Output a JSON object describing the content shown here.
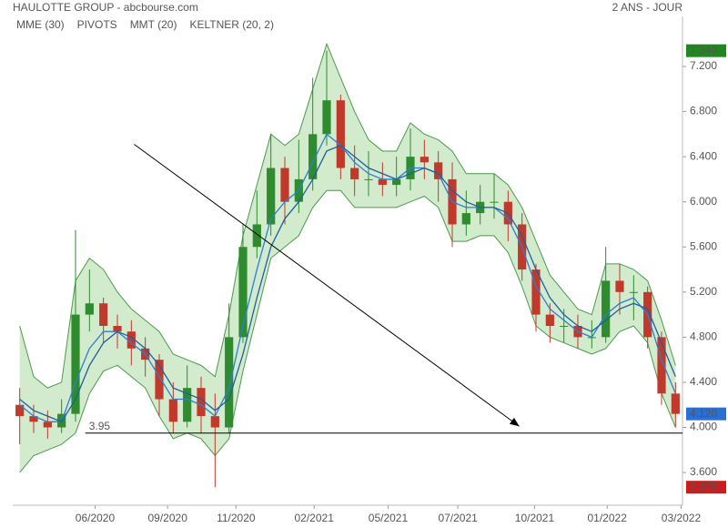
{
  "chart_data": {
    "type": "candlestick",
    "title": "HAULOTTE GROUP - abcbourse.com",
    "period": "2 ANS - JOUR",
    "up_color": "#2e8b2e",
    "down_color": "#c0392b",
    "candles": {
      "open": [
        4.2,
        4.1,
        4.05,
        4.0,
        4.12,
        5.0,
        5.1,
        4.9,
        4.85,
        4.7,
        4.6,
        4.25,
        4.05,
        4.35,
        4.1,
        4.0,
        4.8,
        5.6,
        5.8,
        6.3,
        6.0,
        6.2,
        6.6,
        6.9,
        6.3,
        6.2,
        6.2,
        6.15,
        6.2,
        6.4,
        6.35,
        6.2,
        5.8,
        5.9,
        6.0,
        6.0,
        5.8,
        5.4,
        5.0,
        4.9,
        4.9,
        4.8,
        4.8,
        5.3,
        5.2,
        5.2,
        4.8,
        4.3
      ],
      "high": [
        4.35,
        4.2,
        4.15,
        4.25,
        5.75,
        5.4,
        5.15,
        5.0,
        4.95,
        4.8,
        4.65,
        4.4,
        4.55,
        4.45,
        4.3,
        5.1,
        5.8,
        6.1,
        6.6,
        6.4,
        6.55,
        7.1,
        7.34,
        6.95,
        6.5,
        6.45,
        6.35,
        6.4,
        6.65,
        6.55,
        6.45,
        6.35,
        6.1,
        6.15,
        6.25,
        6.1,
        5.9,
        5.45,
        5.1,
        5.05,
        5.0,
        4.95,
        5.6,
        5.45,
        5.35,
        5.25,
        4.85,
        4.4
      ],
      "low": [
        3.85,
        3.95,
        3.9,
        3.95,
        4.05,
        4.85,
        4.75,
        4.7,
        4.55,
        4.45,
        4.1,
        3.95,
        4.0,
        3.95,
        3.47,
        3.95,
        4.75,
        5.5,
        5.7,
        5.8,
        5.9,
        6.1,
        6.5,
        6.2,
        6.05,
        6.05,
        6.05,
        6.05,
        6.1,
        6.2,
        6.0,
        5.6,
        5.7,
        5.8,
        5.85,
        5.65,
        5.3,
        4.85,
        4.75,
        4.75,
        4.7,
        4.7,
        4.75,
        5.0,
        4.95,
        4.7,
        4.2,
        4.0
      ],
      "close": [
        4.1,
        4.05,
        4.0,
        4.12,
        5.0,
        5.1,
        4.9,
        4.85,
        4.7,
        4.6,
        4.25,
        4.05,
        4.35,
        4.1,
        4.0,
        4.8,
        5.6,
        5.8,
        6.3,
        6.0,
        6.2,
        6.6,
        6.9,
        6.3,
        6.2,
        6.2,
        6.15,
        6.2,
        6.4,
        6.35,
        6.2,
        5.8,
        5.9,
        6.0,
        6.0,
        5.8,
        5.4,
        5.0,
        4.9,
        4.9,
        4.8,
        4.8,
        5.3,
        5.2,
        5.2,
        4.8,
        4.3,
        4.12
      ]
    },
    "series": [
      {
        "name": "MME (30)",
        "color": "#2a7fd4",
        "values": [
          4.2,
          4.1,
          4.05,
          4.05,
          4.4,
          4.7,
          4.85,
          4.85,
          4.75,
          4.65,
          4.45,
          4.25,
          4.25,
          4.2,
          4.1,
          4.35,
          4.9,
          5.4,
          5.85,
          6.0,
          6.1,
          6.35,
          6.6,
          6.5,
          6.35,
          6.25,
          6.2,
          6.2,
          6.3,
          6.3,
          6.25,
          6.0,
          5.95,
          5.95,
          5.95,
          5.85,
          5.6,
          5.25,
          5.05,
          4.95,
          4.85,
          4.8,
          5.0,
          5.1,
          5.15,
          5.0,
          4.6,
          4.3
        ]
      },
      {
        "name": "PIVOTS",
        "color": "#444444"
      },
      {
        "name": "MMT (20)",
        "color": "#1f5f9f",
        "values": [
          4.25,
          4.15,
          4.1,
          4.05,
          4.25,
          4.55,
          4.75,
          4.85,
          4.8,
          4.7,
          4.55,
          4.35,
          4.3,
          4.25,
          4.15,
          4.25,
          4.65,
          5.15,
          5.6,
          5.85,
          6.0,
          6.2,
          6.45,
          6.5,
          6.4,
          6.3,
          6.25,
          6.2,
          6.25,
          6.3,
          6.25,
          6.1,
          6.0,
          5.95,
          5.95,
          5.9,
          5.7,
          5.4,
          5.15,
          5.0,
          4.9,
          4.85,
          4.95,
          5.05,
          5.1,
          5.05,
          4.75,
          4.45
        ]
      },
      {
        "name": "KELTNER (20, 2)",
        "color": "#4a9a4a",
        "fill": "#c8e6c0",
        "upper": [
          4.9,
          4.45,
          4.35,
          4.4,
          5.3,
          5.5,
          5.4,
          5.2,
          5.05,
          4.95,
          4.85,
          4.65,
          4.6,
          4.55,
          4.45,
          5.0,
          5.7,
          6.15,
          6.6,
          6.5,
          6.6,
          7.0,
          7.4,
          7.1,
          6.8,
          6.55,
          6.45,
          6.45,
          6.7,
          6.6,
          6.55,
          6.45,
          6.25,
          6.25,
          6.25,
          6.15,
          5.95,
          5.65,
          5.35,
          5.2,
          5.05,
          5.0,
          5.45,
          5.45,
          5.4,
          5.3,
          4.95,
          4.55
        ],
        "lower": [
          3.6,
          3.75,
          3.8,
          3.85,
          3.95,
          4.3,
          4.5,
          4.55,
          4.45,
          4.35,
          4.1,
          3.9,
          3.95,
          3.9,
          3.75,
          3.9,
          4.5,
          5.0,
          5.5,
          5.6,
          5.7,
          5.95,
          6.1,
          6.1,
          5.95,
          5.95,
          5.95,
          5.95,
          6.0,
          6.05,
          5.95,
          5.65,
          5.65,
          5.7,
          5.7,
          5.55,
          5.25,
          4.9,
          4.8,
          4.75,
          4.7,
          4.65,
          4.7,
          4.85,
          4.9,
          4.75,
          4.3,
          4.0
        ]
      }
    ],
    "xlim": [
      -0.5,
      47.5
    ],
    "xticks": [
      {
        "value": 5.4,
        "label": "06/2020"
      },
      {
        "value": 10.6,
        "label": "09/2020"
      },
      {
        "value": 15.5,
        "label": "11/2020"
      },
      {
        "value": 21.1,
        "label": "02/2021"
      },
      {
        "value": 26.4,
        "label": "05/2021"
      },
      {
        "value": 31.4,
        "label": "07/2021"
      },
      {
        "value": 36.9,
        "label": "10/2021"
      },
      {
        "value": 42.1,
        "label": "01/2022"
      },
      {
        "value": 47.4,
        "label": "03/2022"
      }
    ],
    "ylim": [
      3.31,
      7.644
    ],
    "yticks": [
      {
        "value": 3.6,
        "label": "3.600"
      },
      {
        "value": 4.0,
        "label": "4.000"
      },
      {
        "value": 4.4,
        "label": "4.400"
      },
      {
        "value": 4.8,
        "label": "4.800"
      },
      {
        "value": 5.2,
        "label": "5.200"
      },
      {
        "value": 5.6,
        "label": "5.600"
      },
      {
        "value": 6.0,
        "label": "6.000"
      },
      {
        "value": 6.4,
        "label": "6.400"
      },
      {
        "value": 6.8,
        "label": "6.800"
      },
      {
        "value": 7.2,
        "label": "7.200"
      }
    ],
    "hline": {
      "value": 3.95,
      "label": "3.95"
    },
    "trendline": {
      "x": [
        8.2,
        35.8
      ],
      "y": [
        6.51,
        4.01
      ]
    },
    "price_tags": [
      {
        "value": 7.34,
        "label": "7.340",
        "color": "#1e8a1e"
      },
      {
        "value": 4.12,
        "label": "4.120",
        "color": "#2a6fd4"
      },
      {
        "value": 3.47,
        "label": "3.470",
        "color": "#c81e1e"
      }
    ]
  }
}
